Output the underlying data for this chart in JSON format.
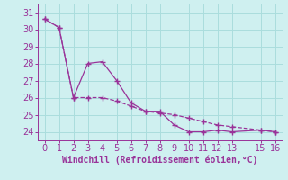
{
  "xlabel": "Windchill (Refroidissement éolien,°C)",
  "line1_x": [
    0,
    1,
    2,
    3,
    4,
    5,
    6,
    7,
    8,
    9,
    10,
    11,
    12,
    13,
    15,
    16
  ],
  "line1_y": [
    30.6,
    30.1,
    26.0,
    28.0,
    28.1,
    27.0,
    25.7,
    25.2,
    25.2,
    24.4,
    24.0,
    24.0,
    24.1,
    24.0,
    24.1,
    24.0
  ],
  "line2_x": [
    0,
    1,
    2,
    3,
    4,
    5,
    6,
    7,
    8,
    9,
    10,
    11,
    12,
    13,
    15,
    16
  ],
  "line2_y": [
    30.6,
    30.1,
    26.0,
    26.0,
    26.0,
    25.8,
    25.5,
    25.2,
    25.1,
    25.0,
    24.8,
    24.6,
    24.4,
    24.3,
    24.1,
    24.0
  ],
  "line_color": "#993399",
  "bg_color": "#cff0f0",
  "grid_color": "#aadddd",
  "axis_color": "#993399",
  "xlim": [
    -0.5,
    16.5
  ],
  "ylim": [
    23.5,
    31.5
  ],
  "yticks": [
    24,
    25,
    26,
    27,
    28,
    29,
    30,
    31
  ],
  "xticks": [
    0,
    1,
    2,
    3,
    4,
    5,
    6,
    7,
    8,
    9,
    10,
    11,
    12,
    13,
    15,
    16
  ],
  "tick_fontsize": 7,
  "xlabel_fontsize": 7
}
